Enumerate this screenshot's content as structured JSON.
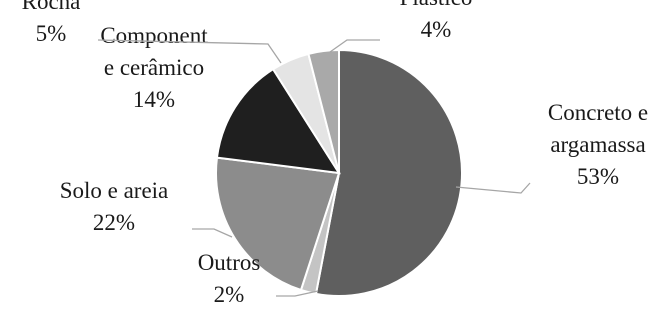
{
  "chart_data": {
    "type": "pie",
    "start_angle_deg": 0,
    "direction": "clockwise",
    "slices": [
      {
        "category_lines": [
          "Concreto e",
          "argamassa"
        ],
        "percent_label": "53%",
        "value": 53,
        "color": "#5f5f5f"
      },
      {
        "category_lines": [
          "Outros"
        ],
        "percent_label": "2%",
        "value": 2,
        "color": "#c4c4c4"
      },
      {
        "category_lines": [
          "Solo e areia"
        ],
        "percent_label": "22%",
        "value": 22,
        "color": "#8c8c8c"
      },
      {
        "category_lines": [
          "Component",
          "e cerâmico"
        ],
        "percent_label": "14%",
        "value": 14,
        "color": "#1f1f1f"
      },
      {
        "category_lines": [
          "Rocha"
        ],
        "percent_label": "5%",
        "value": 5,
        "color": "#e4e4e4"
      },
      {
        "category_lines": [
          "Plástico"
        ],
        "percent_label": "4%",
        "value": 4,
        "color": "#a9a9a9"
      }
    ]
  }
}
